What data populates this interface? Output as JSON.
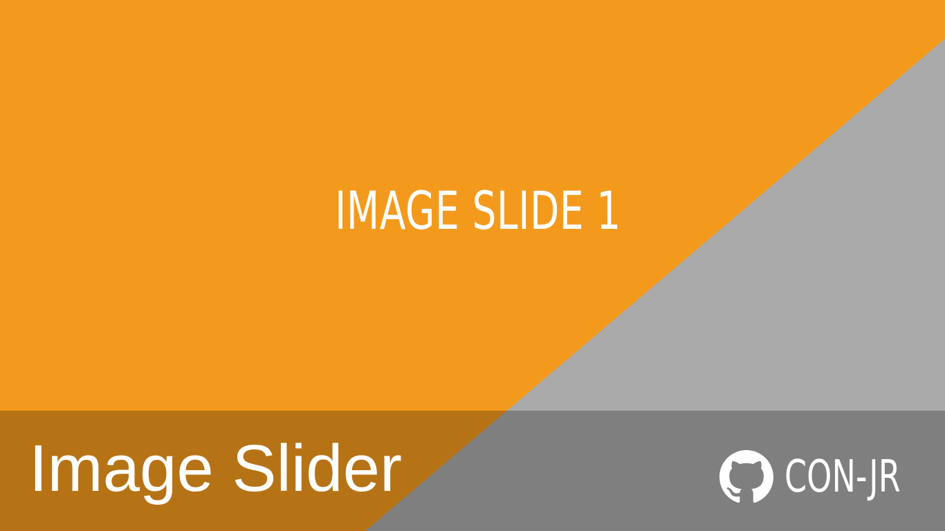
{
  "colors": {
    "slide_primary": "#f39a1d",
    "slide_secondary": "#aaaaaa",
    "bottom_bar_overlay": "rgba(0,0,0,0.25)",
    "text": "#ffffff"
  },
  "slider": {
    "current_slide": {
      "caption": "IMAGE SLIDE 1"
    }
  },
  "footer": {
    "title": "Image Slider",
    "author": {
      "icon": "github-icon",
      "name": "CON-JR"
    }
  }
}
